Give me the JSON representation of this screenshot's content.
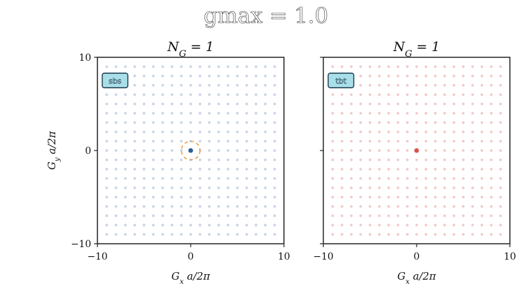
{
  "suptitle": "gmax = 1.0",
  "chart_data": [
    {
      "type": "scatter",
      "title": "N_G = 1",
      "tag": "sbs",
      "xlabel": "G_x a/2π",
      "ylabel": "G_y a/2π",
      "xlim": [
        -10,
        10
      ],
      "ylim": [
        -10,
        10
      ],
      "x_ticks": [
        "−10",
        "0",
        "10"
      ],
      "y_ticks": [
        "−10",
        "0",
        "10"
      ],
      "lattice": {
        "x_range": [
          -9,
          9
        ],
        "y_range": [
          -9,
          9
        ],
        "step": 1,
        "color": "#c6d4e8"
      },
      "highlight": {
        "x": 0,
        "y": 0,
        "color": "#2a5f97"
      },
      "circle": {
        "center": [
          0,
          0
        ],
        "radius": 1.0,
        "color": "#f0a04b",
        "style": "dashed"
      }
    },
    {
      "type": "scatter",
      "title": "N_G = 1",
      "tag": "tbt",
      "xlabel": "G_x a/2π",
      "ylabel": "",
      "xlim": [
        -10,
        10
      ],
      "ylim": [
        -10,
        10
      ],
      "x_ticks": [
        "−10",
        "0",
        "10"
      ],
      "y_ticks": [],
      "lattice": {
        "x_range": [
          -9,
          9
        ],
        "y_range": [
          -9,
          9
        ],
        "step": 1,
        "color": "#f3c9c9"
      },
      "highlight": {
        "x": 0,
        "y": 0,
        "color": "#d9534f"
      },
      "circle": null
    }
  ]
}
